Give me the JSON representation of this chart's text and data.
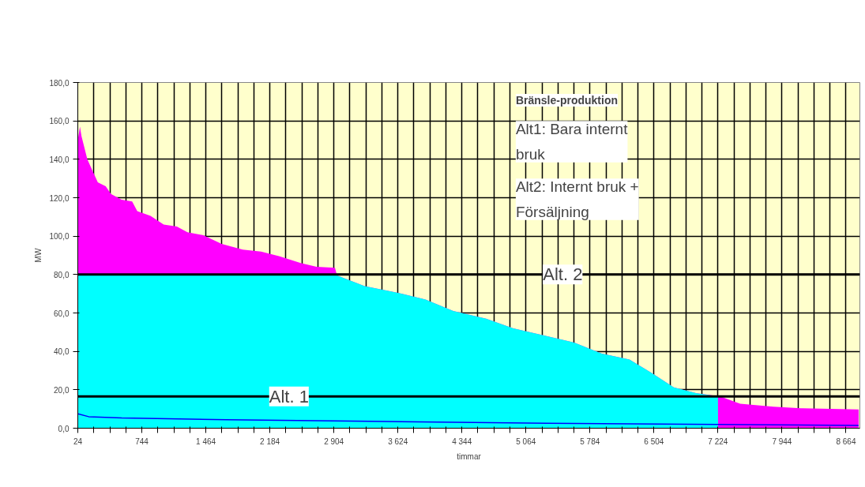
{
  "chart_data": {
    "type": "area",
    "xlabel": "timmar",
    "ylabel": "MW",
    "annotations": [
      "Bränsle-produktion",
      "Alt1: Bara internt bruk",
      "Alt2: Internt bruk + Försäljning"
    ],
    "series": [
      {
        "color": "#ff00ff",
        "x": [
          24,
          48,
          66,
          131,
          190,
          249,
          338,
          397,
          516,
          635,
          693,
          842,
          990,
          1138,
          1257,
          1435,
          1642,
          1879,
          2086,
          2294,
          2531,
          2709,
          2916,
          2940,
          3250,
          3624,
          3935,
          4247,
          4616,
          4922,
          5296,
          5607,
          5918,
          6229,
          6478,
          6727,
          6976,
          7251,
          7474,
          7847,
          8158,
          8807
        ],
        "values": [
          150,
          157,
          152,
          140,
          134,
          128,
          126,
          122,
          119,
          118,
          113,
          110.5,
          106,
          105,
          102,
          100.5,
          96,
          93,
          92,
          89.5,
          86,
          84,
          83.5,
          79.5,
          74,
          70.5,
          67,
          61,
          57,
          52,
          48,
          44.6,
          38.8,
          35.8,
          28.8,
          21.3,
          18.3,
          16.5,
          12.7,
          11.2,
          10.4,
          9.8
        ]
      },
      {
        "color": "#00ffff",
        "x": [
          24,
          2916,
          2940,
          3250,
          3624,
          3935,
          4247,
          4616,
          4922,
          5296,
          5607,
          5918,
          6229,
          6478,
          6727,
          6976,
          7224,
          7225
        ],
        "values": [
          80,
          80,
          79.5,
          74,
          70.5,
          67,
          61,
          57,
          52,
          48,
          44.6,
          38.8,
          35.8,
          28.8,
          21.3,
          18.3,
          16.5,
          0
        ]
      },
      {
        "type": "line",
        "color": "#0000ff",
        "x": [
          24,
          146,
          518,
          1695,
          3500,
          5296,
          7225,
          8807
        ],
        "values": [
          7.5,
          6,
          5.3,
          4.4,
          3.5,
          2.6,
          2,
          1.4
        ]
      }
    ],
    "xlim": [
      24,
      8820
    ],
    "xticks": [
      24,
      {
        "value": 204,
        "label": null
      },
      {
        "value": 384,
        "label": null
      },
      {
        "value": 564,
        "label": null
      },
      744,
      {
        "value": 924,
        "label": null
      },
      {
        "value": 1104,
        "label": null
      },
      {
        "value": 1284,
        "label": null
      },
      {
        "value": 1464,
        "label": "1 464"
      },
      {
        "value": 1644,
        "label": null
      },
      {
        "value": 1824,
        "label": null
      },
      {
        "value": 2004,
        "label": null
      },
      {
        "value": 2184,
        "label": "2 184"
      },
      {
        "value": 2364,
        "label": null
      },
      {
        "value": 2544,
        "label": null
      },
      {
        "value": 2724,
        "label": null
      },
      {
        "value": 2904,
        "label": "2 904"
      },
      {
        "value": 3084,
        "label": null
      },
      {
        "value": 3264,
        "label": null
      },
      {
        "value": 3444,
        "label": null
      },
      {
        "value": 3624,
        "label": "3 624"
      },
      {
        "value": 3804,
        "label": null
      },
      {
        "value": 3984,
        "label": null
      },
      {
        "value": 4164,
        "label": null
      },
      {
        "value": 4344,
        "label": "4 344"
      },
      {
        "value": 4524,
        "label": null
      },
      {
        "value": 4704,
        "label": null
      },
      {
        "value": 4884,
        "label": null
      },
      {
        "value": 5064,
        "label": "5 064"
      },
      {
        "value": 5244,
        "label": null
      },
      {
        "value": 5424,
        "label": null
      },
      {
        "value": 5604,
        "label": null
      },
      {
        "value": 5784,
        "label": "5 784"
      },
      {
        "value": 5964,
        "label": null
      },
      {
        "value": 6144,
        "label": null
      },
      {
        "value": 6324,
        "label": null
      },
      {
        "value": 6504,
        "label": "6 504"
      },
      {
        "value": 6684,
        "label": null
      },
      {
        "value": 6864,
        "label": null
      },
      {
        "value": 7044,
        "label": null
      },
      {
        "value": 7224,
        "label": "7 224"
      },
      {
        "value": 7404,
        "label": null
      },
      {
        "value": 7584,
        "label": null
      },
      {
        "value": 7764,
        "label": null
      },
      {
        "value": 7944,
        "label": "7 944"
      },
      {
        "value": 8124,
        "label": null
      },
      {
        "value": 8304,
        "label": null
      },
      {
        "value": 8484,
        "label": null
      },
      {
        "value": 8664,
        "label": "8 664"
      }
    ],
    "ylim": [
      0,
      180
    ],
    "yticks": [
      {
        "value": 0,
        "label": "0,0"
      },
      {
        "value": 20,
        "label": "20,0"
      },
      {
        "value": 40,
        "label": "40,0"
      },
      {
        "value": 60,
        "label": "60,0"
      },
      {
        "value": 80,
        "label": "80,0"
      },
      {
        "value": 100,
        "label": "100,0"
      },
      {
        "value": 120,
        "label": "120,0"
      },
      {
        "value": 140,
        "label": "140,0"
      },
      {
        "value": 160,
        "label": "160,0"
      },
      {
        "value": 180,
        "label": "180,0"
      }
    ],
    "ref_lines": [
      {
        "axis": "y",
        "value": 80,
        "label": "Alt. 2",
        "color": "#000000"
      },
      {
        "axis": "y",
        "value": 16.5,
        "label": "Alt. 1",
        "color": "#000000"
      }
    ],
    "grid": true
  }
}
